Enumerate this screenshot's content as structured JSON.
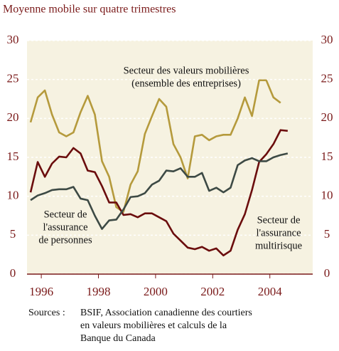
{
  "chart_data": {
    "type": "line",
    "title": "Moyenne mobile sur quatre trimestres",
    "x": [
      1995.625,
      1995.875,
      1996.125,
      1996.375,
      1996.625,
      1996.875,
      1997.125,
      1997.375,
      1997.625,
      1997.875,
      1998.125,
      1998.375,
      1998.625,
      1998.875,
      1999.125,
      1999.375,
      1999.625,
      1999.875,
      2000.125,
      2000.375,
      2000.625,
      2000.875,
      2001.125,
      2001.375,
      2001.625,
      2001.875,
      2002.125,
      2002.375,
      2002.625,
      2002.875,
      2003.125,
      2003.375,
      2003.625,
      2003.875,
      2004.125,
      2004.375,
      2004.625
    ],
    "series": [
      {
        "name": "Secteur des valeurs mobilières",
        "color": "#b59a3c",
        "values": [
          19.5,
          22.7,
          23.6,
          20.5,
          18.2,
          17.7,
          18.2,
          20.8,
          22.9,
          20.5,
          14.5,
          12.5,
          8.6,
          8.0,
          11.5,
          13.2,
          18.0,
          20.3,
          22.5,
          21.5,
          16.7,
          15.0,
          12.3,
          17.7,
          17.9,
          17.2,
          17.7,
          17.9,
          17.9,
          20.0,
          22.7,
          20.3,
          24.9,
          24.9,
          22.7,
          22.0,
          null
        ]
      },
      {
        "name": "Secteur de l'assurance multirisque",
        "color": "#6b0d0d",
        "values": [
          10.5,
          14.4,
          12.5,
          14.2,
          15.1,
          15.0,
          16.2,
          15.5,
          13.3,
          13.1,
          11.3,
          9.2,
          9.2,
          7.6,
          7.7,
          7.3,
          7.8,
          7.8,
          7.3,
          6.8,
          5.2,
          4.3,
          3.4,
          3.2,
          3.5,
          3.0,
          3.3,
          2.4,
          3.0,
          5.7,
          7.7,
          10.8,
          14.4,
          15.4,
          16.7,
          18.5,
          18.4
        ]
      },
      {
        "name": "Secteur de l'assurance de personnes",
        "color": "#3d4a45",
        "values": [
          9.5,
          10.1,
          10.4,
          10.8,
          10.9,
          10.9,
          11.2,
          9.7,
          9.5,
          7.5,
          5.8,
          6.9,
          7.0,
          8.3,
          9.9,
          10.0,
          10.4,
          11.5,
          12.0,
          13.3,
          13.2,
          13.6,
          12.5,
          12.5,
          13.0,
          10.7,
          11.1,
          10.5,
          11.1,
          14.0,
          14.6,
          14.9,
          14.5,
          14.5,
          15.0,
          15.3,
          15.5
        ]
      }
    ],
    "annotations": [
      [
        "Secteur des valeurs mobilières",
        "(ensemble des entreprises)"
      ],
      [
        "Secteur de",
        "l'assurance",
        "de personnes"
      ],
      [
        "Secteur de",
        "l'assurance",
        "multirisque"
      ]
    ],
    "xlim": [
      1995.5,
      2005.5
    ],
    "xticks": [
      1996,
      1998,
      2000,
      2002,
      2004
    ],
    "ylim": [
      0,
      30
    ],
    "yticks": [
      0,
      5,
      10,
      15,
      20,
      25,
      30
    ],
    "y2lim": [
      0,
      30
    ],
    "y2ticks": [
      0,
      5,
      10,
      15,
      20,
      25,
      30
    ],
    "grid": true,
    "source": {
      "label": "Sources :",
      "lines": [
        "BSIF, Association canadienne des courtiers",
        "en valeurs mobilières et calculs de la",
        "Banque du Canada"
      ]
    }
  }
}
